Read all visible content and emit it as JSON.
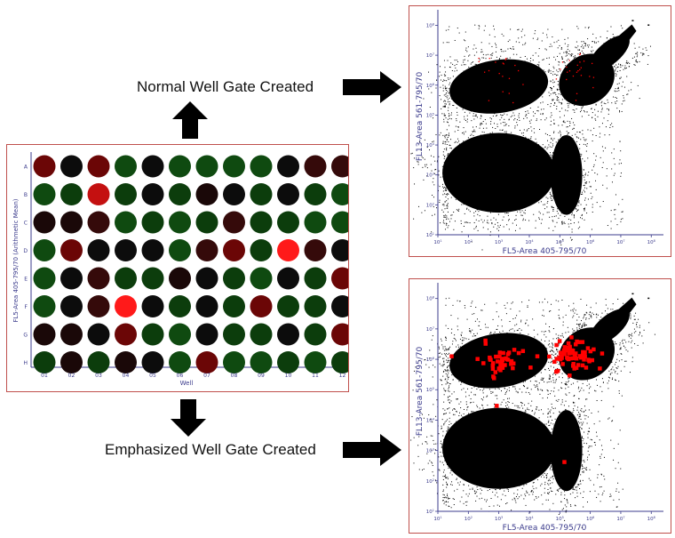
{
  "captions": {
    "normal": "Normal Well Gate Created",
    "emphasized": "Emphasized Well Gate Created"
  },
  "plate": {
    "rows": [
      "A",
      "B",
      "C",
      "D",
      "E",
      "F",
      "G",
      "H"
    ],
    "columns": [
      "01",
      "02",
      "03",
      "04",
      "05",
      "06",
      "07",
      "08",
      "09",
      "10",
      "11",
      "12"
    ],
    "xlabel": "Well",
    "ylabel": "FL5-Area 405-795/70 (Arithmetic Mean)",
    "colors": {
      "k": "#0c0c0c",
      "g": "#0c3d0c",
      "G": "#0f4a10",
      "d": "#1a0808",
      "m": "#350a0a",
      "r": "#6b0606",
      "R": "#c41010",
      "B": "#ff1a1a"
    },
    "wells": [
      "rkrGkGGGGkmm",
      "GgRgkgdkgkgG",
      "ddmGgGgmggGG",
      "GrkkkGmrgBmk",
      "GkmggdkgGkgr",
      "GkmBkgkgrggk",
      "ddkrgGkggkgr",
      "gdgdkGrGGgGg"
    ]
  },
  "scatter_axes": {
    "xlabel": "FL5-Area 405-795/70",
    "ylabel": "FL13-Area 561-795/70",
    "tick_label": "10"
  },
  "colors": {
    "border": "#c0504d",
    "axis": "#3b3b8c",
    "event": "#000000",
    "gated": "#ff0000"
  }
}
